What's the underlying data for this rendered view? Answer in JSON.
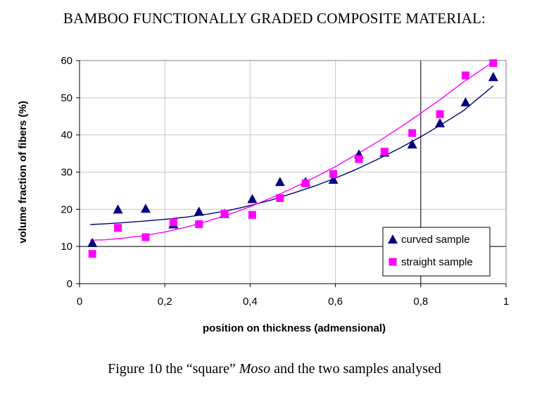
{
  "heading": "BAMBOO FUNCTIONALLY GRADED COMPOSITE MATERIAL:",
  "caption": {
    "prefix": "Figure 10  the “square” ",
    "italic": "Moso",
    "suffix": " and the two samples analysed"
  },
  "chart_data": {
    "type": "scatter",
    "title": "",
    "xlabel": "position on thickness (admensional)",
    "ylabel": "volume fraction of fibers (%)",
    "xlim": [
      0,
      1
    ],
    "ylim": [
      0,
      60
    ],
    "xticks": [
      0,
      0.2,
      0.4,
      0.6,
      0.8,
      1
    ],
    "xtick_labels": [
      "0",
      "0,2",
      "0,4",
      "0,6",
      "0,8",
      "1"
    ],
    "yticks": [
      0,
      10,
      20,
      30,
      40,
      50,
      60
    ],
    "ytick_labels": [
      "0",
      "10",
      "20",
      "30",
      "40",
      "50",
      "60"
    ],
    "grid": true,
    "legend_position": "right",
    "series": [
      {
        "name": "curved sample",
        "marker": "triangle",
        "color": "#000080",
        "x": [
          0.03,
          0.09,
          0.155,
          0.22,
          0.28,
          0.34,
          0.405,
          0.47,
          0.53,
          0.595,
          0.655,
          0.715,
          0.78,
          0.845,
          0.905,
          0.97
        ],
        "y": [
          11,
          20,
          20.2,
          16,
          19.4,
          18.8,
          22.8,
          27.4,
          27.4,
          28,
          34.8,
          35.3,
          37.5,
          43.2,
          48.8,
          55.6
        ],
        "trend_x": [
          0.025,
          0.06,
          0.1,
          0.15,
          0.2,
          0.25,
          0.3,
          0.35,
          0.4,
          0.45,
          0.5,
          0.55,
          0.6,
          0.65,
          0.7,
          0.75,
          0.8,
          0.85,
          0.9,
          0.97
        ],
        "trend_y": [
          15.9,
          16.1,
          16.4,
          16.8,
          17.3,
          17.9,
          18.7,
          19.7,
          21,
          22.5,
          24.3,
          26.2,
          28.4,
          30.8,
          33.5,
          36.4,
          39.5,
          42.9,
          46.5,
          53.2
        ]
      },
      {
        "name": "straight sample",
        "marker": "square",
        "color": "#FF00FF",
        "x": [
          0.03,
          0.09,
          0.155,
          0.22,
          0.28,
          0.34,
          0.405,
          0.47,
          0.53,
          0.595,
          0.655,
          0.715,
          0.78,
          0.845,
          0.905,
          0.97
        ],
        "y": [
          8,
          15,
          12.5,
          16.5,
          16,
          18.8,
          18.5,
          23,
          27,
          29.5,
          33.5,
          35.5,
          40.5,
          45.6,
          56,
          59.3
        ],
        "trend_x": [
          0.025,
          0.06,
          0.1,
          0.15,
          0.2,
          0.25,
          0.3,
          0.35,
          0.4,
          0.45,
          0.5,
          0.55,
          0.6,
          0.65,
          0.7,
          0.75,
          0.8,
          0.85,
          0.9,
          0.97
        ],
        "trend_y": [
          11.7,
          11.8,
          12.2,
          12.9,
          13.9,
          15.2,
          16.8,
          18.6,
          20.7,
          23.1,
          25.7,
          28.5,
          31.5,
          34.8,
          38.2,
          41.9,
          45.8,
          49.9,
          54.2,
          59.6
        ]
      }
    ]
  }
}
